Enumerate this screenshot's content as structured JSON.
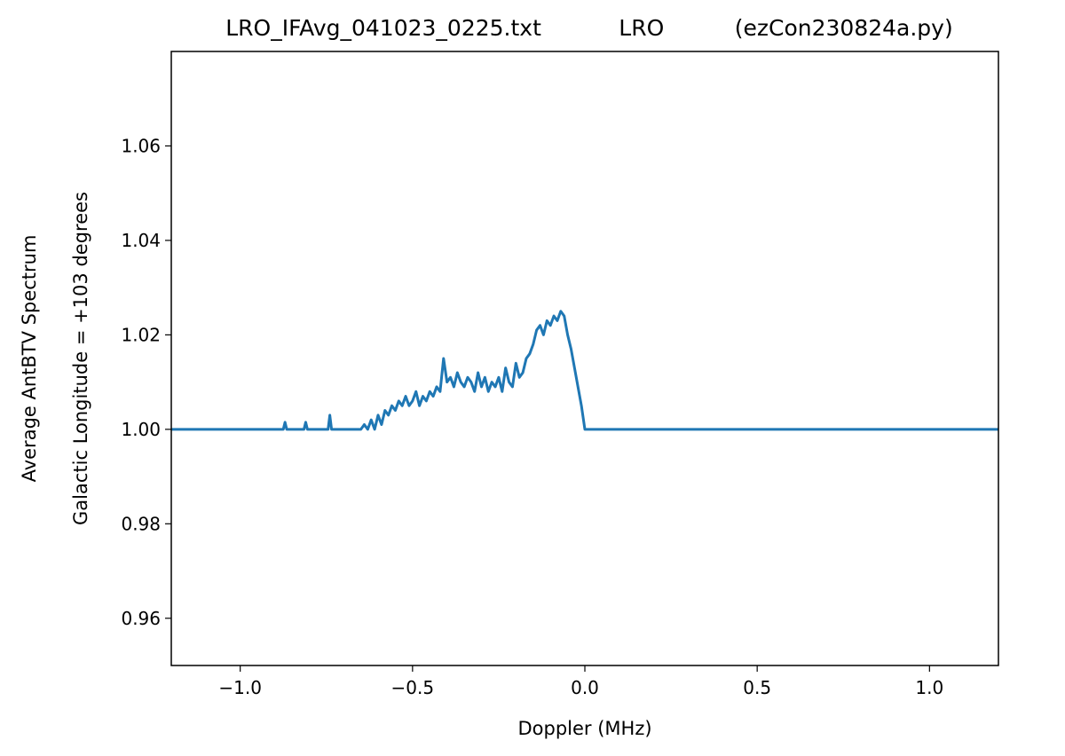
{
  "chart_data": {
    "type": "line",
    "title": "LRO_IFAvg_041023_0225.txt           LRO          (ezCon230824a.py)",
    "xlabel": "Doppler (MHz)",
    "ylabel": [
      "Average AntBTV Spectrum",
      "Galactic Longitude = +103 degrees"
    ],
    "xlim": [
      -1.2,
      1.2
    ],
    "ylim": [
      0.95,
      1.08
    ],
    "xticks": [
      {
        "value": -1.0,
        "label": "−1.0"
      },
      {
        "value": -0.5,
        "label": "−0.5"
      },
      {
        "value": 0,
        "label": "0.0"
      },
      {
        "value": 0.5,
        "label": "0.5"
      },
      {
        "value": 1.0,
        "label": "1.0"
      }
    ],
    "yticks": [
      0.96,
      0.98,
      {
        "value": 1,
        "label": "1.00"
      },
      1.02,
      1.04,
      1.06
    ],
    "grid": false,
    "series": [
      {
        "color": "#1f77b4",
        "x": [
          -1.2,
          -0.875,
          -0.87,
          -0.865,
          -0.815,
          -0.81,
          -0.805,
          -0.745,
          -0.74,
          -0.735,
          -0.65,
          -0.64,
          -0.63,
          -0.62,
          -0.61,
          -0.6,
          -0.59,
          -0.58,
          -0.57,
          -0.56,
          -0.55,
          -0.54,
          -0.53,
          -0.52,
          -0.51,
          -0.5,
          -0.49,
          -0.48,
          -0.47,
          -0.46,
          -0.45,
          -0.44,
          -0.43,
          -0.42,
          -0.41,
          -0.4,
          -0.39,
          -0.38,
          -0.37,
          -0.36,
          -0.35,
          -0.34,
          -0.33,
          -0.32,
          -0.31,
          -0.3,
          -0.29,
          -0.28,
          -0.27,
          -0.26,
          -0.25,
          -0.24,
          -0.23,
          -0.22,
          -0.21,
          -0.2,
          -0.19,
          -0.18,
          -0.17,
          -0.16,
          -0.15,
          -0.14,
          -0.13,
          -0.12,
          -0.11,
          -0.1,
          -0.09,
          -0.08,
          -0.07,
          -0.06,
          -0.05,
          -0.04,
          -0.03,
          -0.02,
          -0.01,
          0,
          1.2
        ],
        "values": [
          1.0,
          1.0,
          1.0015,
          1.0,
          1.0,
          1.0015,
          1.0,
          1.0,
          1.003,
          1.0,
          1.0,
          1.001,
          1.0,
          1.002,
          1.0,
          1.003,
          1.001,
          1.004,
          1.003,
          1.005,
          1.004,
          1.006,
          1.005,
          1.007,
          1.005,
          1.006,
          1.008,
          1.005,
          1.007,
          1.006,
          1.008,
          1.007,
          1.009,
          1.008,
          1.015,
          1.01,
          1.011,
          1.009,
          1.012,
          1.01,
          1.009,
          1.011,
          1.01,
          1.008,
          1.012,
          1.009,
          1.011,
          1.008,
          1.01,
          1.009,
          1.011,
          1.008,
          1.013,
          1.01,
          1.009,
          1.014,
          1.011,
          1.012,
          1.015,
          1.016,
          1.018,
          1.021,
          1.022,
          1.02,
          1.023,
          1.022,
          1.024,
          1.023,
          1.025,
          1.024,
          1.02,
          1.017,
          1.013,
          1.009,
          1.005,
          1.0,
          1.0
        ]
      }
    ]
  }
}
